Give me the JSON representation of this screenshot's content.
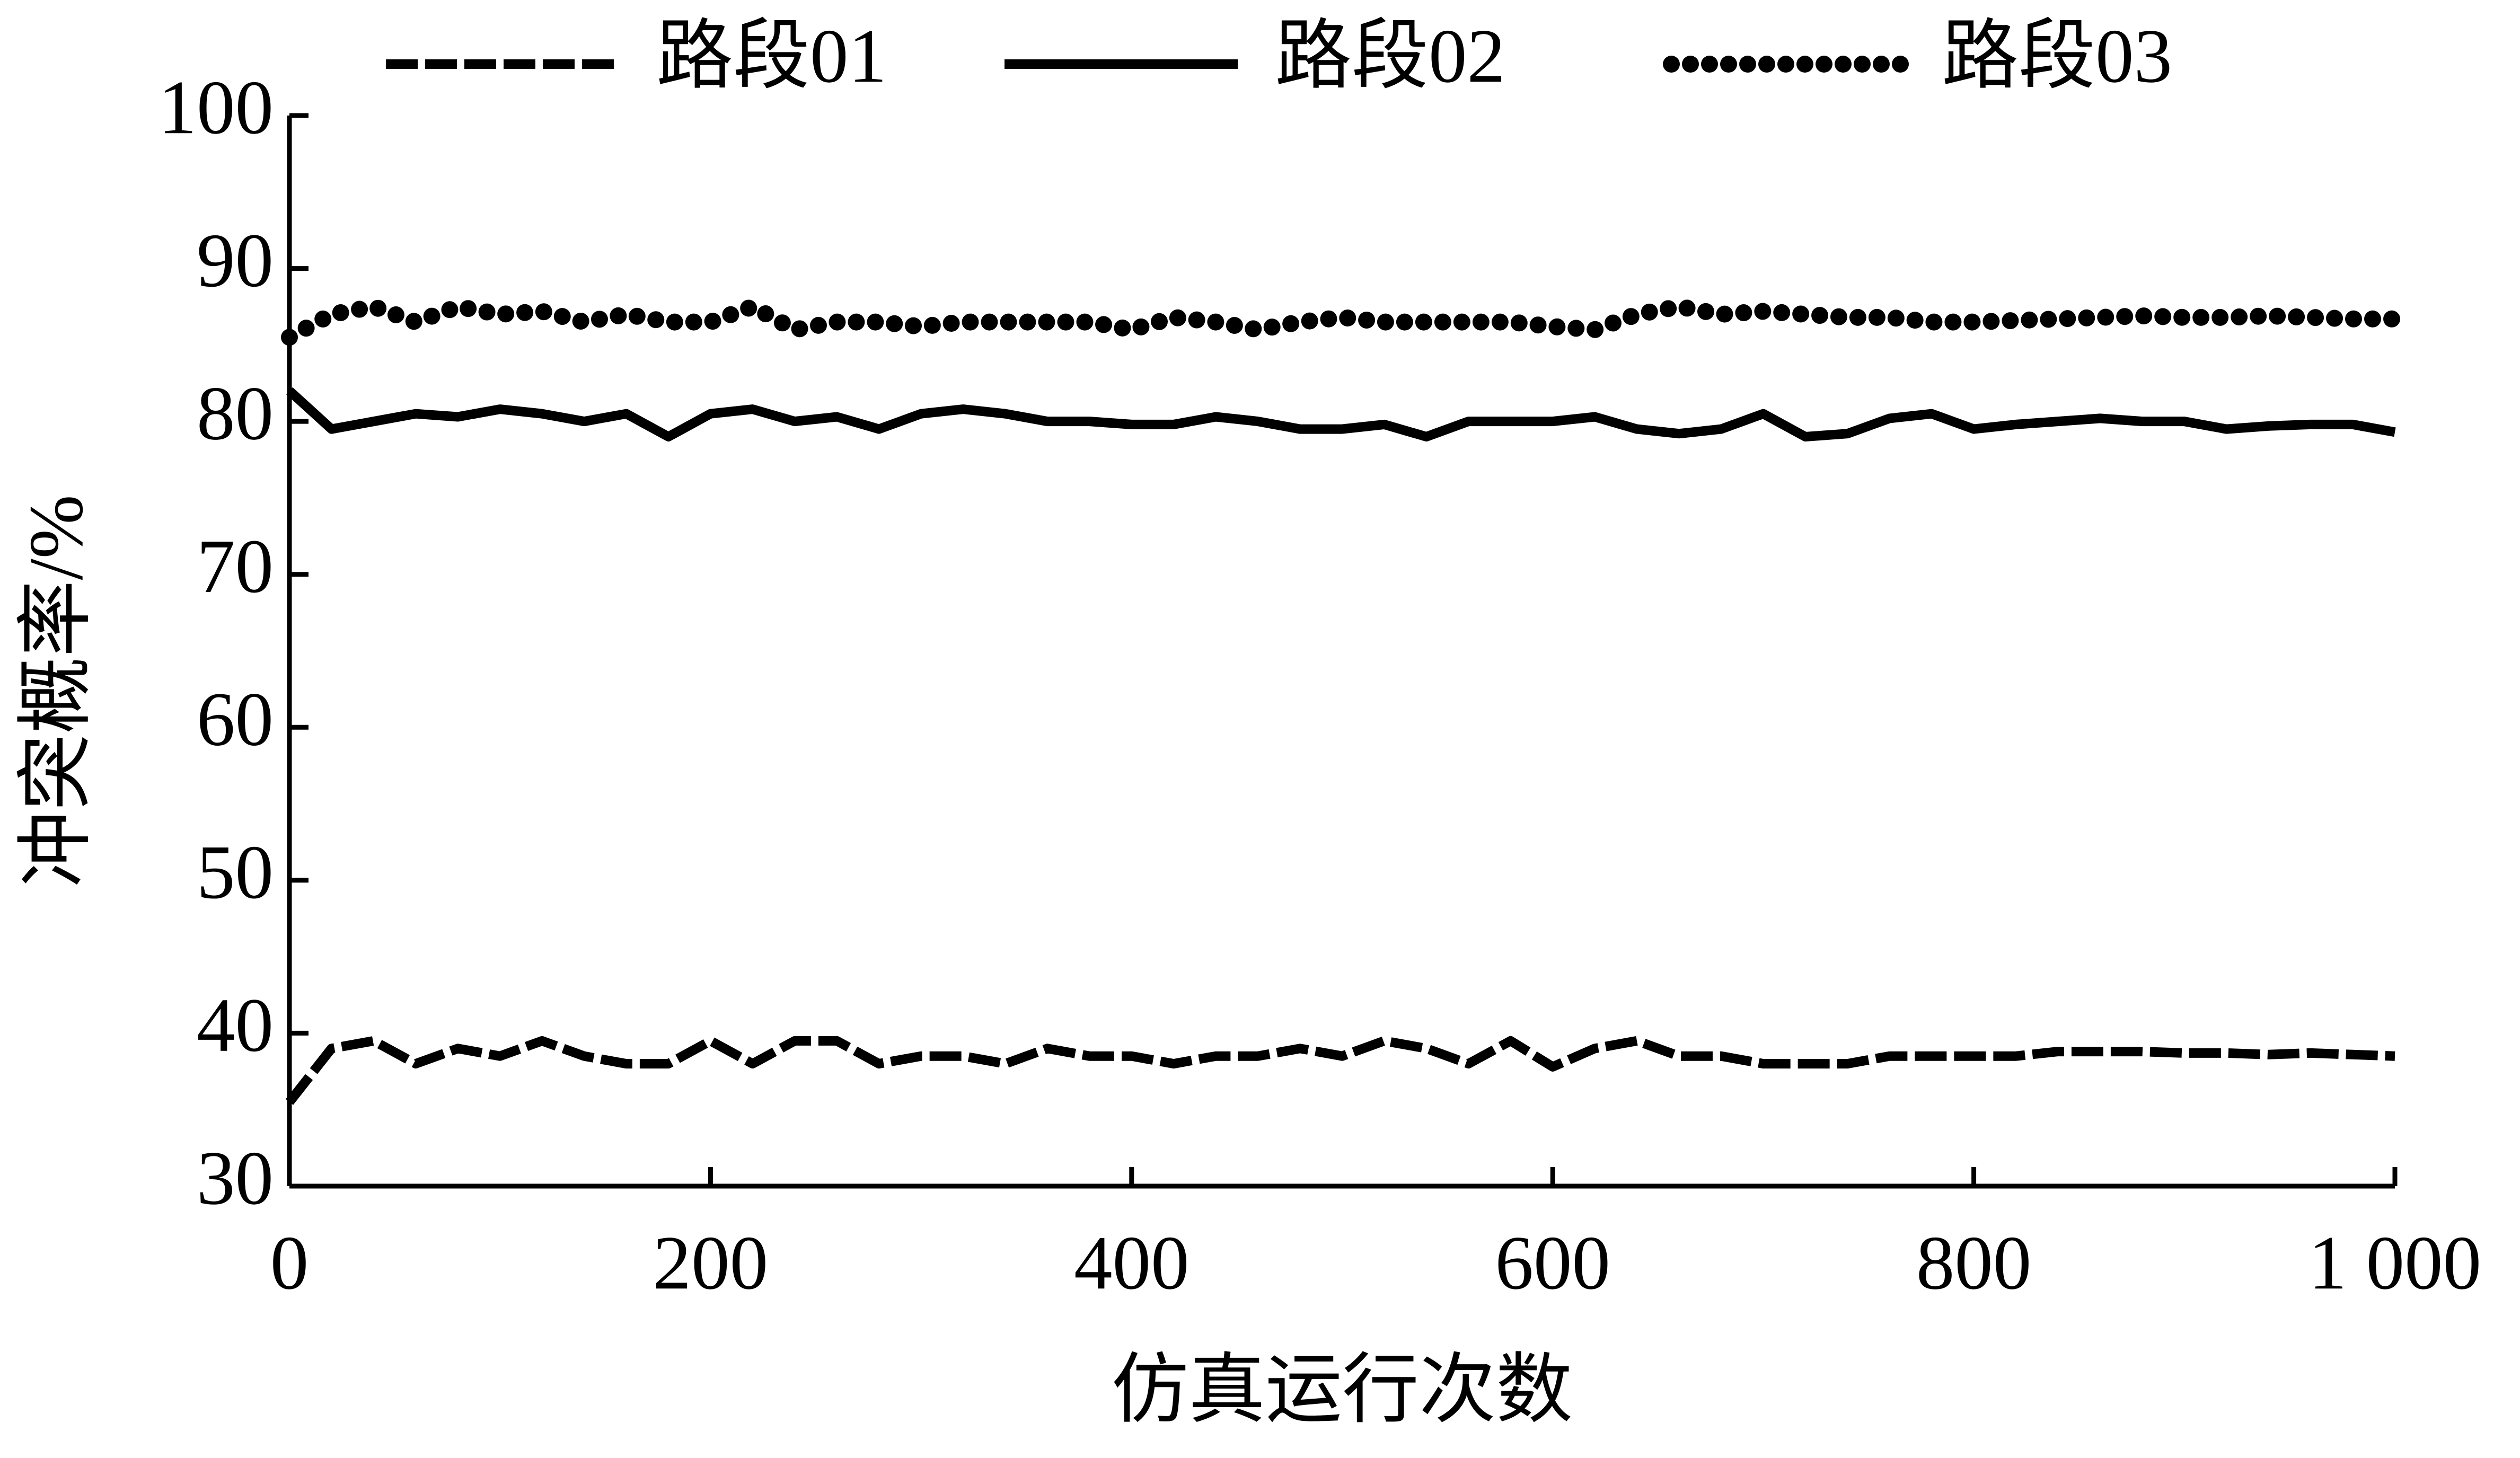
{
  "chart_data": {
    "type": "line",
    "x_label": "仿真运行次数",
    "y_label": "冲突概率/%",
    "x": [
      0,
      20,
      40,
      60,
      80,
      100,
      120,
      140,
      160,
      180,
      200,
      220,
      240,
      260,
      280,
      300,
      320,
      340,
      360,
      380,
      400,
      420,
      440,
      460,
      480,
      500,
      520,
      540,
      560,
      580,
      600,
      620,
      640,
      660,
      680,
      700,
      720,
      740,
      760,
      780,
      800,
      820,
      840,
      860,
      880,
      900,
      920,
      940,
      960,
      980,
      1000
    ],
    "series": [
      {
        "name": "路段01",
        "color": "#000000",
        "style": "dashed",
        "values": [
          35.5,
          39,
          39.5,
          38,
          39,
          38.5,
          39.5,
          38.5,
          38,
          38,
          39.5,
          38,
          39.5,
          39.5,
          38,
          38.5,
          38.5,
          38,
          39,
          38.5,
          38.5,
          38,
          38.5,
          38.5,
          39,
          38.5,
          39.5,
          39,
          38,
          39.5,
          37.8,
          39,
          39.5,
          38.5,
          38.5,
          38,
          38,
          38,
          38.5,
          38.5,
          38.5,
          38.5,
          38.8,
          38.8,
          38.8,
          38.7,
          38.7,
          38.6,
          38.7,
          38.6,
          38.5
        ]
      },
      {
        "name": "路段02",
        "color": "#000000",
        "style": "solid",
        "values": [
          82,
          79.5,
          80,
          80.5,
          80.3,
          80.8,
          80.5,
          80,
          80.5,
          79,
          80.5,
          80.8,
          80,
          80.3,
          79.5,
          80.5,
          80.8,
          80.5,
          80,
          80,
          79.8,
          79.8,
          80.3,
          80,
          79.5,
          79.5,
          79.8,
          79,
          80,
          80,
          80,
          80.3,
          79.5,
          79.2,
          79.5,
          80.5,
          79,
          79.2,
          80.2,
          80.5,
          79.5,
          79.8,
          80,
          80.2,
          80,
          80,
          79.5,
          79.7,
          79.8,
          79.8,
          79.3
        ]
      },
      {
        "name": "路段03",
        "color": "#000000",
        "style": "dotted",
        "values": [
          85.5,
          87,
          87.5,
          86.5,
          87.5,
          87,
          87.2,
          86.5,
          87,
          86.5,
          86.5,
          87.5,
          86,
          86.5,
          86.5,
          86.2,
          86.5,
          86.5,
          86.5,
          86.5,
          86,
          86.8,
          86.5,
          86,
          86.5,
          86.8,
          86.5,
          86.5,
          86.5,
          86.5,
          86.2,
          86,
          87,
          87.5,
          87,
          87.2,
          87,
          86.8,
          86.8,
          86.5,
          86.5,
          86.6,
          86.7,
          86.8,
          86.9,
          86.8,
          86.8,
          86.9,
          86.8,
          86.7,
          86.7
        ]
      }
    ],
    "xlim": [
      0,
      1000
    ],
    "xticks": [
      0,
      200,
      400,
      600,
      800,
      {
        "value": 1000,
        "label": "1 000"
      }
    ],
    "ylim": [
      30,
      100
    ],
    "yticks": [
      30,
      40,
      50,
      60,
      70,
      80,
      90,
      100
    ],
    "legend": "top"
  }
}
